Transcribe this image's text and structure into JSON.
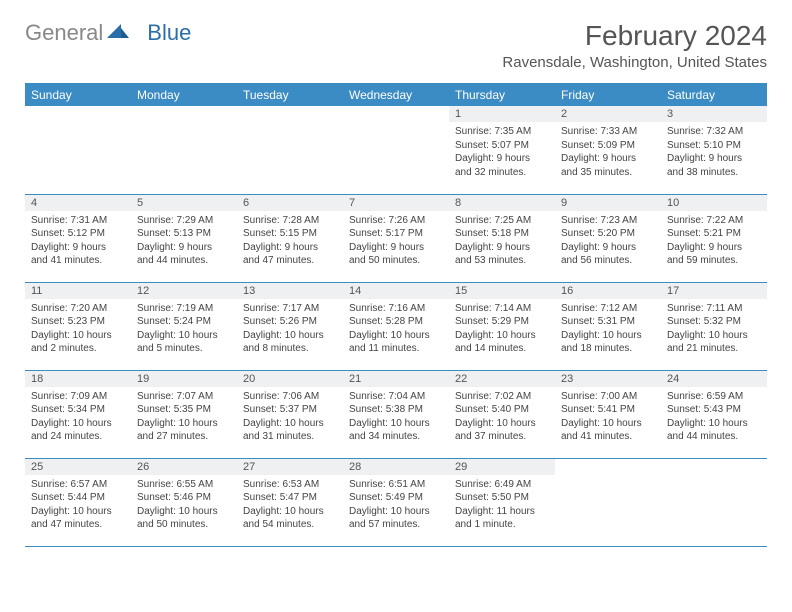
{
  "logo": {
    "part1": "General",
    "part2": "Blue"
  },
  "title": "February 2024",
  "location": "Ravensdale, Washington, United States",
  "colors": {
    "header_bg": "#3b8bc4",
    "header_text": "#ffffff",
    "rule": "#3b8bc4",
    "dayrow_bg": "#eef0f2",
    "text": "#444444",
    "logo_gray": "#888888",
    "logo_blue": "#2a6faa"
  },
  "dayHeaders": [
    "Sunday",
    "Monday",
    "Tuesday",
    "Wednesday",
    "Thursday",
    "Friday",
    "Saturday"
  ],
  "weeks": [
    [
      null,
      null,
      null,
      null,
      {
        "n": "1",
        "sr": "7:35 AM",
        "ss": "5:07 PM",
        "dl": "9 hours and 32 minutes."
      },
      {
        "n": "2",
        "sr": "7:33 AM",
        "ss": "5:09 PM",
        "dl": "9 hours and 35 minutes."
      },
      {
        "n": "3",
        "sr": "7:32 AM",
        "ss": "5:10 PM",
        "dl": "9 hours and 38 minutes."
      }
    ],
    [
      {
        "n": "4",
        "sr": "7:31 AM",
        "ss": "5:12 PM",
        "dl": "9 hours and 41 minutes."
      },
      {
        "n": "5",
        "sr": "7:29 AM",
        "ss": "5:13 PM",
        "dl": "9 hours and 44 minutes."
      },
      {
        "n": "6",
        "sr": "7:28 AM",
        "ss": "5:15 PM",
        "dl": "9 hours and 47 minutes."
      },
      {
        "n": "7",
        "sr": "7:26 AM",
        "ss": "5:17 PM",
        "dl": "9 hours and 50 minutes."
      },
      {
        "n": "8",
        "sr": "7:25 AM",
        "ss": "5:18 PM",
        "dl": "9 hours and 53 minutes."
      },
      {
        "n": "9",
        "sr": "7:23 AM",
        "ss": "5:20 PM",
        "dl": "9 hours and 56 minutes."
      },
      {
        "n": "10",
        "sr": "7:22 AM",
        "ss": "5:21 PM",
        "dl": "9 hours and 59 minutes."
      }
    ],
    [
      {
        "n": "11",
        "sr": "7:20 AM",
        "ss": "5:23 PM",
        "dl": "10 hours and 2 minutes."
      },
      {
        "n": "12",
        "sr": "7:19 AM",
        "ss": "5:24 PM",
        "dl": "10 hours and 5 minutes."
      },
      {
        "n": "13",
        "sr": "7:17 AM",
        "ss": "5:26 PM",
        "dl": "10 hours and 8 minutes."
      },
      {
        "n": "14",
        "sr": "7:16 AM",
        "ss": "5:28 PM",
        "dl": "10 hours and 11 minutes."
      },
      {
        "n": "15",
        "sr": "7:14 AM",
        "ss": "5:29 PM",
        "dl": "10 hours and 14 minutes."
      },
      {
        "n": "16",
        "sr": "7:12 AM",
        "ss": "5:31 PM",
        "dl": "10 hours and 18 minutes."
      },
      {
        "n": "17",
        "sr": "7:11 AM",
        "ss": "5:32 PM",
        "dl": "10 hours and 21 minutes."
      }
    ],
    [
      {
        "n": "18",
        "sr": "7:09 AM",
        "ss": "5:34 PM",
        "dl": "10 hours and 24 minutes."
      },
      {
        "n": "19",
        "sr": "7:07 AM",
        "ss": "5:35 PM",
        "dl": "10 hours and 27 minutes."
      },
      {
        "n": "20",
        "sr": "7:06 AM",
        "ss": "5:37 PM",
        "dl": "10 hours and 31 minutes."
      },
      {
        "n": "21",
        "sr": "7:04 AM",
        "ss": "5:38 PM",
        "dl": "10 hours and 34 minutes."
      },
      {
        "n": "22",
        "sr": "7:02 AM",
        "ss": "5:40 PM",
        "dl": "10 hours and 37 minutes."
      },
      {
        "n": "23",
        "sr": "7:00 AM",
        "ss": "5:41 PM",
        "dl": "10 hours and 41 minutes."
      },
      {
        "n": "24",
        "sr": "6:59 AM",
        "ss": "5:43 PM",
        "dl": "10 hours and 44 minutes."
      }
    ],
    [
      {
        "n": "25",
        "sr": "6:57 AM",
        "ss": "5:44 PM",
        "dl": "10 hours and 47 minutes."
      },
      {
        "n": "26",
        "sr": "6:55 AM",
        "ss": "5:46 PM",
        "dl": "10 hours and 50 minutes."
      },
      {
        "n": "27",
        "sr": "6:53 AM",
        "ss": "5:47 PM",
        "dl": "10 hours and 54 minutes."
      },
      {
        "n": "28",
        "sr": "6:51 AM",
        "ss": "5:49 PM",
        "dl": "10 hours and 57 minutes."
      },
      {
        "n": "29",
        "sr": "6:49 AM",
        "ss": "5:50 PM",
        "dl": "11 hours and 1 minute."
      },
      null,
      null
    ]
  ],
  "labels": {
    "sunrise": "Sunrise: ",
    "sunset": "Sunset: ",
    "daylight": "Daylight: "
  }
}
